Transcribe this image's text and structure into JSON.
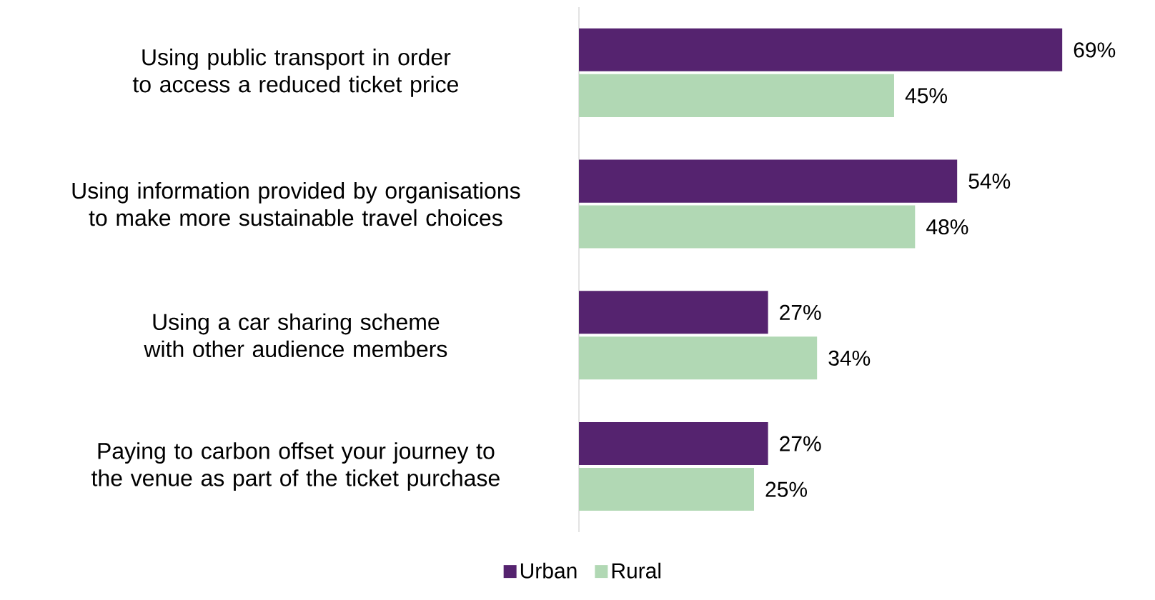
{
  "chart_data": {
    "type": "bar",
    "orientation": "horizontal",
    "categories": [
      "Using public transport in order to access a reduced ticket price",
      "Using information provided by organisations to make more sustainable travel choices",
      "Using a car sharing scheme with other audience members",
      "Paying to carbon offset your journey to the venue as part of the ticket purchase"
    ],
    "series": [
      {
        "name": "Urban",
        "color": "#55236f",
        "values": [
          69,
          54,
          27,
          27
        ],
        "value_labels": [
          "69%",
          "54%",
          "27%",
          "27%"
        ]
      },
      {
        "name": "Rural",
        "color": "#b1d8b4",
        "values": [
          45,
          48,
          34,
          25
        ],
        "value_labels": [
          "45%",
          "48%",
          "34%",
          "25%"
        ]
      }
    ],
    "legend": "bottom"
  }
}
